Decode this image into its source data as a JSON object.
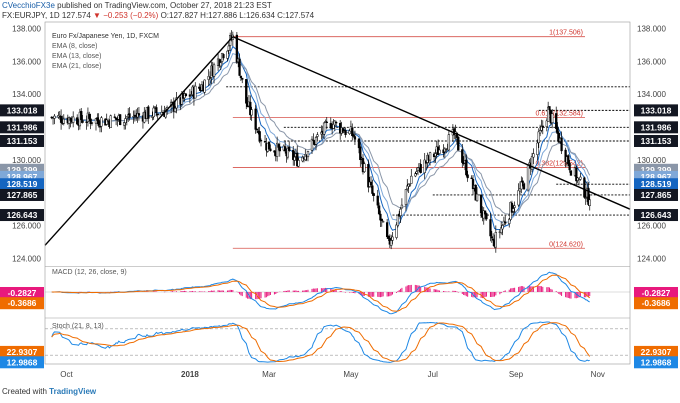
{
  "header": {
    "author": "CVecchioFX3e",
    "published": "published on TradingView.com, October 27, 2018 21:23 EST",
    "symbol": "FX:EURJPY, 1D",
    "last": "127.574",
    "change": "▼ −0.253 (−0.2%)",
    "ohlc": "O:127.827 H:127.886 L:126.634 C:127.574"
  },
  "legend": {
    "name": "Euro Fx/Japanese Yen, 1D, FXCM",
    "ema8": "EMA (8, close)",
    "ema13": "EMA (13, close)",
    "ema21": "EMA (21, close)"
  },
  "footer": {
    "created_with": "Created with",
    "brand": "TradingView"
  },
  "colors": {
    "up": "#ffffff",
    "down": "#000000",
    "candle_border": "#000000",
    "ema8": "#1565c0",
    "ema13": "#7fa8d8",
    "ema21": "#8a96a8",
    "fib": "#d0342c",
    "trend": "#000000",
    "support": "#000000",
    "macd": "#1e88e5",
    "signal": "#ef6c00",
    "hist": "#e8197d",
    "stoch_k": "#1e88e5",
    "stoch_d": "#ef6c00"
  },
  "chart_data": [
    {
      "type": "candlestick",
      "title": "Euro Fx/Japanese Yen, 1D, FXCM",
      "x_ticks": [
        "Oct",
        "2018",
        "Mar",
        "May",
        "Jul",
        "Sep",
        "Nov"
      ],
      "y_ticks": [
        "138.000",
        "136.000",
        "134.000",
        "132.000",
        "130.000",
        "128.000",
        "126.000",
        "124.000"
      ],
      "ylim": [
        123.6,
        138.4
      ],
      "grid": false,
      "key_points": [
        {
          "date": "2017-09-20",
          "close": 132.6
        },
        {
          "date": "2017-11-01",
          "close": 132.4
        },
        {
          "date": "2017-12-15",
          "close": 133.0
        },
        {
          "date": "2018-01-10",
          "close": 134.5
        },
        {
          "date": "2018-02-02",
          "close": 137.5
        },
        {
          "date": "2018-02-12",
          "close": 133.5
        },
        {
          "date": "2018-02-25",
          "close": 131.0
        },
        {
          "date": "2018-03-23",
          "close": 130.0
        },
        {
          "date": "2018-04-16",
          "close": 132.3
        },
        {
          "date": "2018-05-03",
          "close": 131.5
        },
        {
          "date": "2018-05-29",
          "close": 124.8
        },
        {
          "date": "2018-06-15",
          "close": 129.0
        },
        {
          "date": "2018-07-17",
          "close": 131.5
        },
        {
          "date": "2018-08-15",
          "close": 124.9
        },
        {
          "date": "2018-09-07",
          "close": 128.6
        },
        {
          "date": "2018-09-25",
          "close": 133.0
        },
        {
          "date": "2018-10-12",
          "close": 129.5
        },
        {
          "date": "2018-10-26",
          "close": 127.57
        }
      ],
      "price_labels": [
        {
          "value": 133.018,
          "text": "133.018",
          "style": "dark"
        },
        {
          "value": 131.986,
          "text": "131.986",
          "style": "dark"
        },
        {
          "value": 131.153,
          "text": "131.153",
          "style": "dark"
        },
        {
          "value": 129.399,
          "text": "129.399",
          "style": "ema21"
        },
        {
          "value": 128.967,
          "text": "128.967",
          "style": "ema13"
        },
        {
          "value": 128.519,
          "text": "128.519",
          "style": "ema8"
        },
        {
          "value": 127.865,
          "text": "127.865",
          "style": "dark"
        },
        {
          "value": 126.643,
          "text": "126.643",
          "style": "dark"
        }
      ],
      "fib_levels": [
        {
          "ratio": "1",
          "value": 137.506,
          "text": "1(137.506)"
        },
        {
          "ratio": "0.618",
          "value": 132.584,
          "text": "0.618(132.584)"
        },
        {
          "ratio": "0.382",
          "value": 129.542,
          "text": "0.382(129.542)"
        },
        {
          "ratio": "0",
          "value": 124.62,
          "text": "0(124.620)"
        }
      ],
      "horizontal_levels": [
        134.45,
        133.018,
        131.986,
        131.153,
        128.519,
        127.865,
        126.643
      ]
    },
    {
      "type": "line",
      "title": "MACD (12, 26, close, 9)",
      "series": [
        {
          "name": "MACD",
          "value": -0.2827,
          "label": "-0.2827"
        },
        {
          "name": "Signal",
          "value": -0.3686,
          "label": "-0.3686"
        }
      ]
    },
    {
      "type": "line",
      "title": "Stoch (21, 8, 13)",
      "series": [
        {
          "name": "%D",
          "value": 22.9307,
          "label": "22.9307"
        },
        {
          "name": "%K",
          "value": 12.9868,
          "label": "12.9868"
        }
      ]
    }
  ]
}
